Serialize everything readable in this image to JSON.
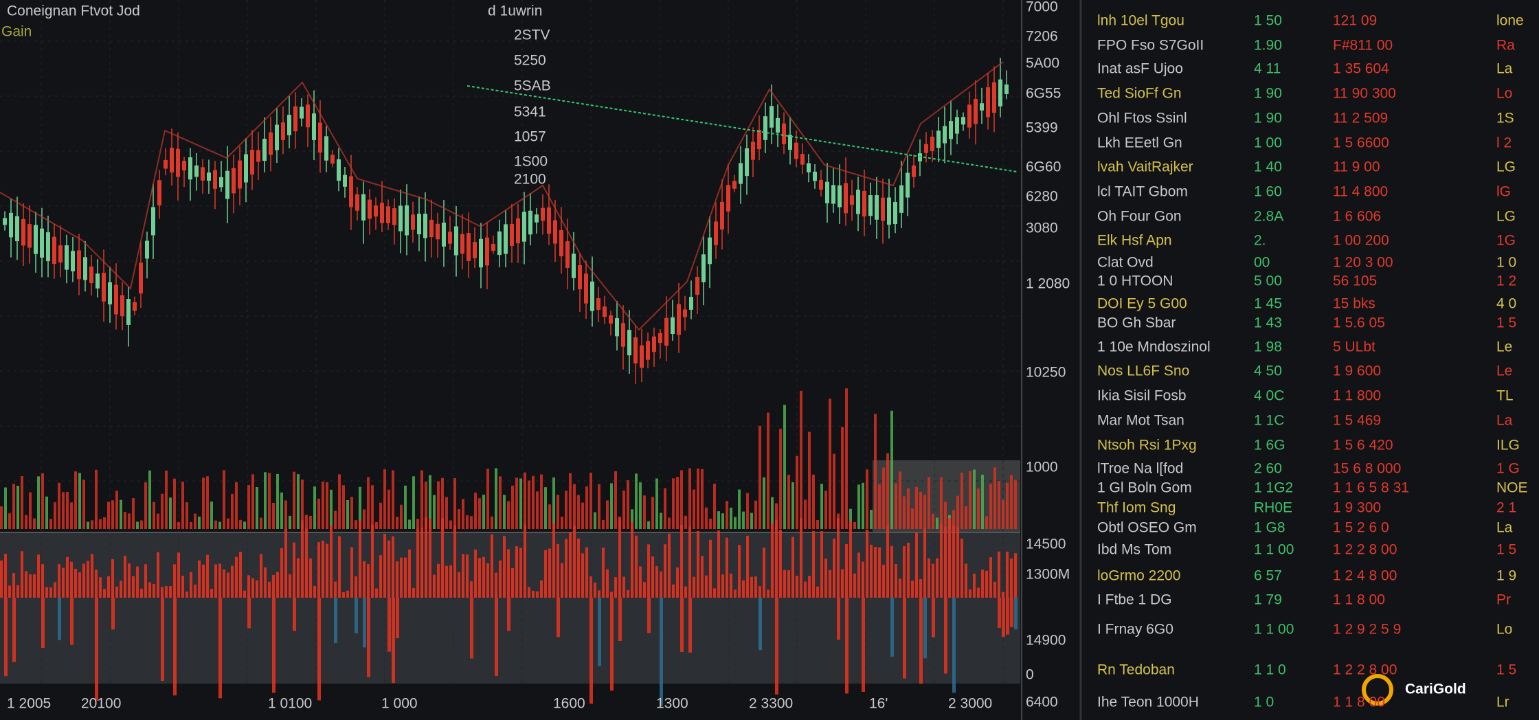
{
  "header": {
    "title": "Coneignan Ftvot Jod",
    "subtitle": "Gain",
    "center_title": "d 1uwrin",
    "center_labels": [
      "2STV",
      "5250",
      "5SAB",
      "5341",
      "1057",
      "1S00",
      "2100"
    ]
  },
  "price_axis": [
    "7000",
    "7206",
    "5A00",
    "6G55",
    "5399",
    "6G60",
    "6280",
    "3080",
    "1 2080",
    "10250",
    "1000",
    "14500",
    "1300M",
    "14900",
    "0",
    "6400"
  ],
  "time_axis": [
    "1 2005",
    "20100",
    "1 0100",
    "1 000",
    "1600",
    "1300",
    "2 3300",
    "16'",
    "2 3000"
  ],
  "side_panel": {
    "rows": [
      [
        "lnh 10el Tgou",
        "1 50",
        "121 09",
        "lone"
      ],
      [
        "FPO Fso S7GoII",
        "1.90",
        "F#811 00",
        "Ra"
      ],
      [
        "Inat asF Ujoo",
        "4 11",
        "1 35 604",
        "La"
      ],
      [
        "Ted SioFf Gn",
        "1 90",
        "11 90 300",
        "Lo"
      ],
      [
        "Ohl Ftos Ssinl",
        "1 90",
        "11 2 509",
        "1S"
      ],
      [
        "Lkh EEetl Gn",
        "1 00",
        "1 5 6600",
        "l 2"
      ],
      [
        "lvah VaitRajker",
        "1 40",
        "11 9 00",
        "LG"
      ],
      [
        "lcl TAIT Gbom",
        "1 60",
        "11 4 800",
        "lG"
      ],
      [
        "Oh Four Gon",
        "2.8A",
        "1 6 606",
        "LG"
      ],
      [
        "Elk Hsf Apn",
        "2.",
        "1 00 200",
        "1G"
      ],
      [
        "Clat Ovd",
        "00",
        "1 20 3 00",
        "1 0"
      ],
      [
        "1 0 HTOON",
        "5 00",
        "56 105",
        "1 2"
      ],
      [
        "DOI Ey 5 G00",
        "1 45",
        "15 bks",
        "4 0"
      ],
      [
        "BO Gh Sbar",
        "1 43",
        "1 5.6 05",
        "1 5"
      ],
      [
        "1 10e Mndoszinol",
        "1 98",
        "5 ULbt",
        "Le"
      ],
      [
        "Nos LL6F Sno",
        "4 50",
        "1 9 600",
        "Le"
      ],
      [
        "Ikia Sisil Fosb",
        "4 0C",
        "1 1 800",
        "TL"
      ],
      [
        "Mar Mot Tsan",
        "1 1C",
        "1 5 469",
        "La"
      ],
      [
        "Ntsoh Rsi 1Pxg",
        "1 6G",
        "1 5 6 420",
        "ILG"
      ],
      [
        "lTroe Na l[fod",
        "2 60",
        "15 6 8 000",
        "1 G"
      ],
      [
        "1 Gl Boln Gom",
        "1 1G2",
        "1 1 6 5 8 31",
        "NOE"
      ],
      [
        "Thf Iom Sng",
        "RH0E",
        "1 9 300",
        "2 1"
      ],
      [
        "Obtl OSEO Gm",
        "1 G8",
        "1 5 2 6 0",
        "La"
      ],
      [
        "Ibd Ms Tom",
        "1 1 00",
        "1 2 2 8 00",
        "1 5"
      ],
      [
        "loGrmo 2200",
        "6 57",
        "1 2 4 8 00",
        "1 9"
      ],
      [
        "I Ftbe 1 DG",
        "1 79",
        "1 1 8 00",
        "Pr"
      ],
      [
        "I Frnay 6G0",
        "1 1 00",
        "1 2 9 2 5 9",
        "Lo"
      ],
      [
        "Rn Tedoban",
        "1 1 0",
        "1 2 2 8 00",
        "1 5"
      ],
      [
        "Ihe Teon 1000H",
        "1 0",
        "1 1 8 00",
        "Lr"
      ]
    ]
  },
  "logo": "CariGold"
}
